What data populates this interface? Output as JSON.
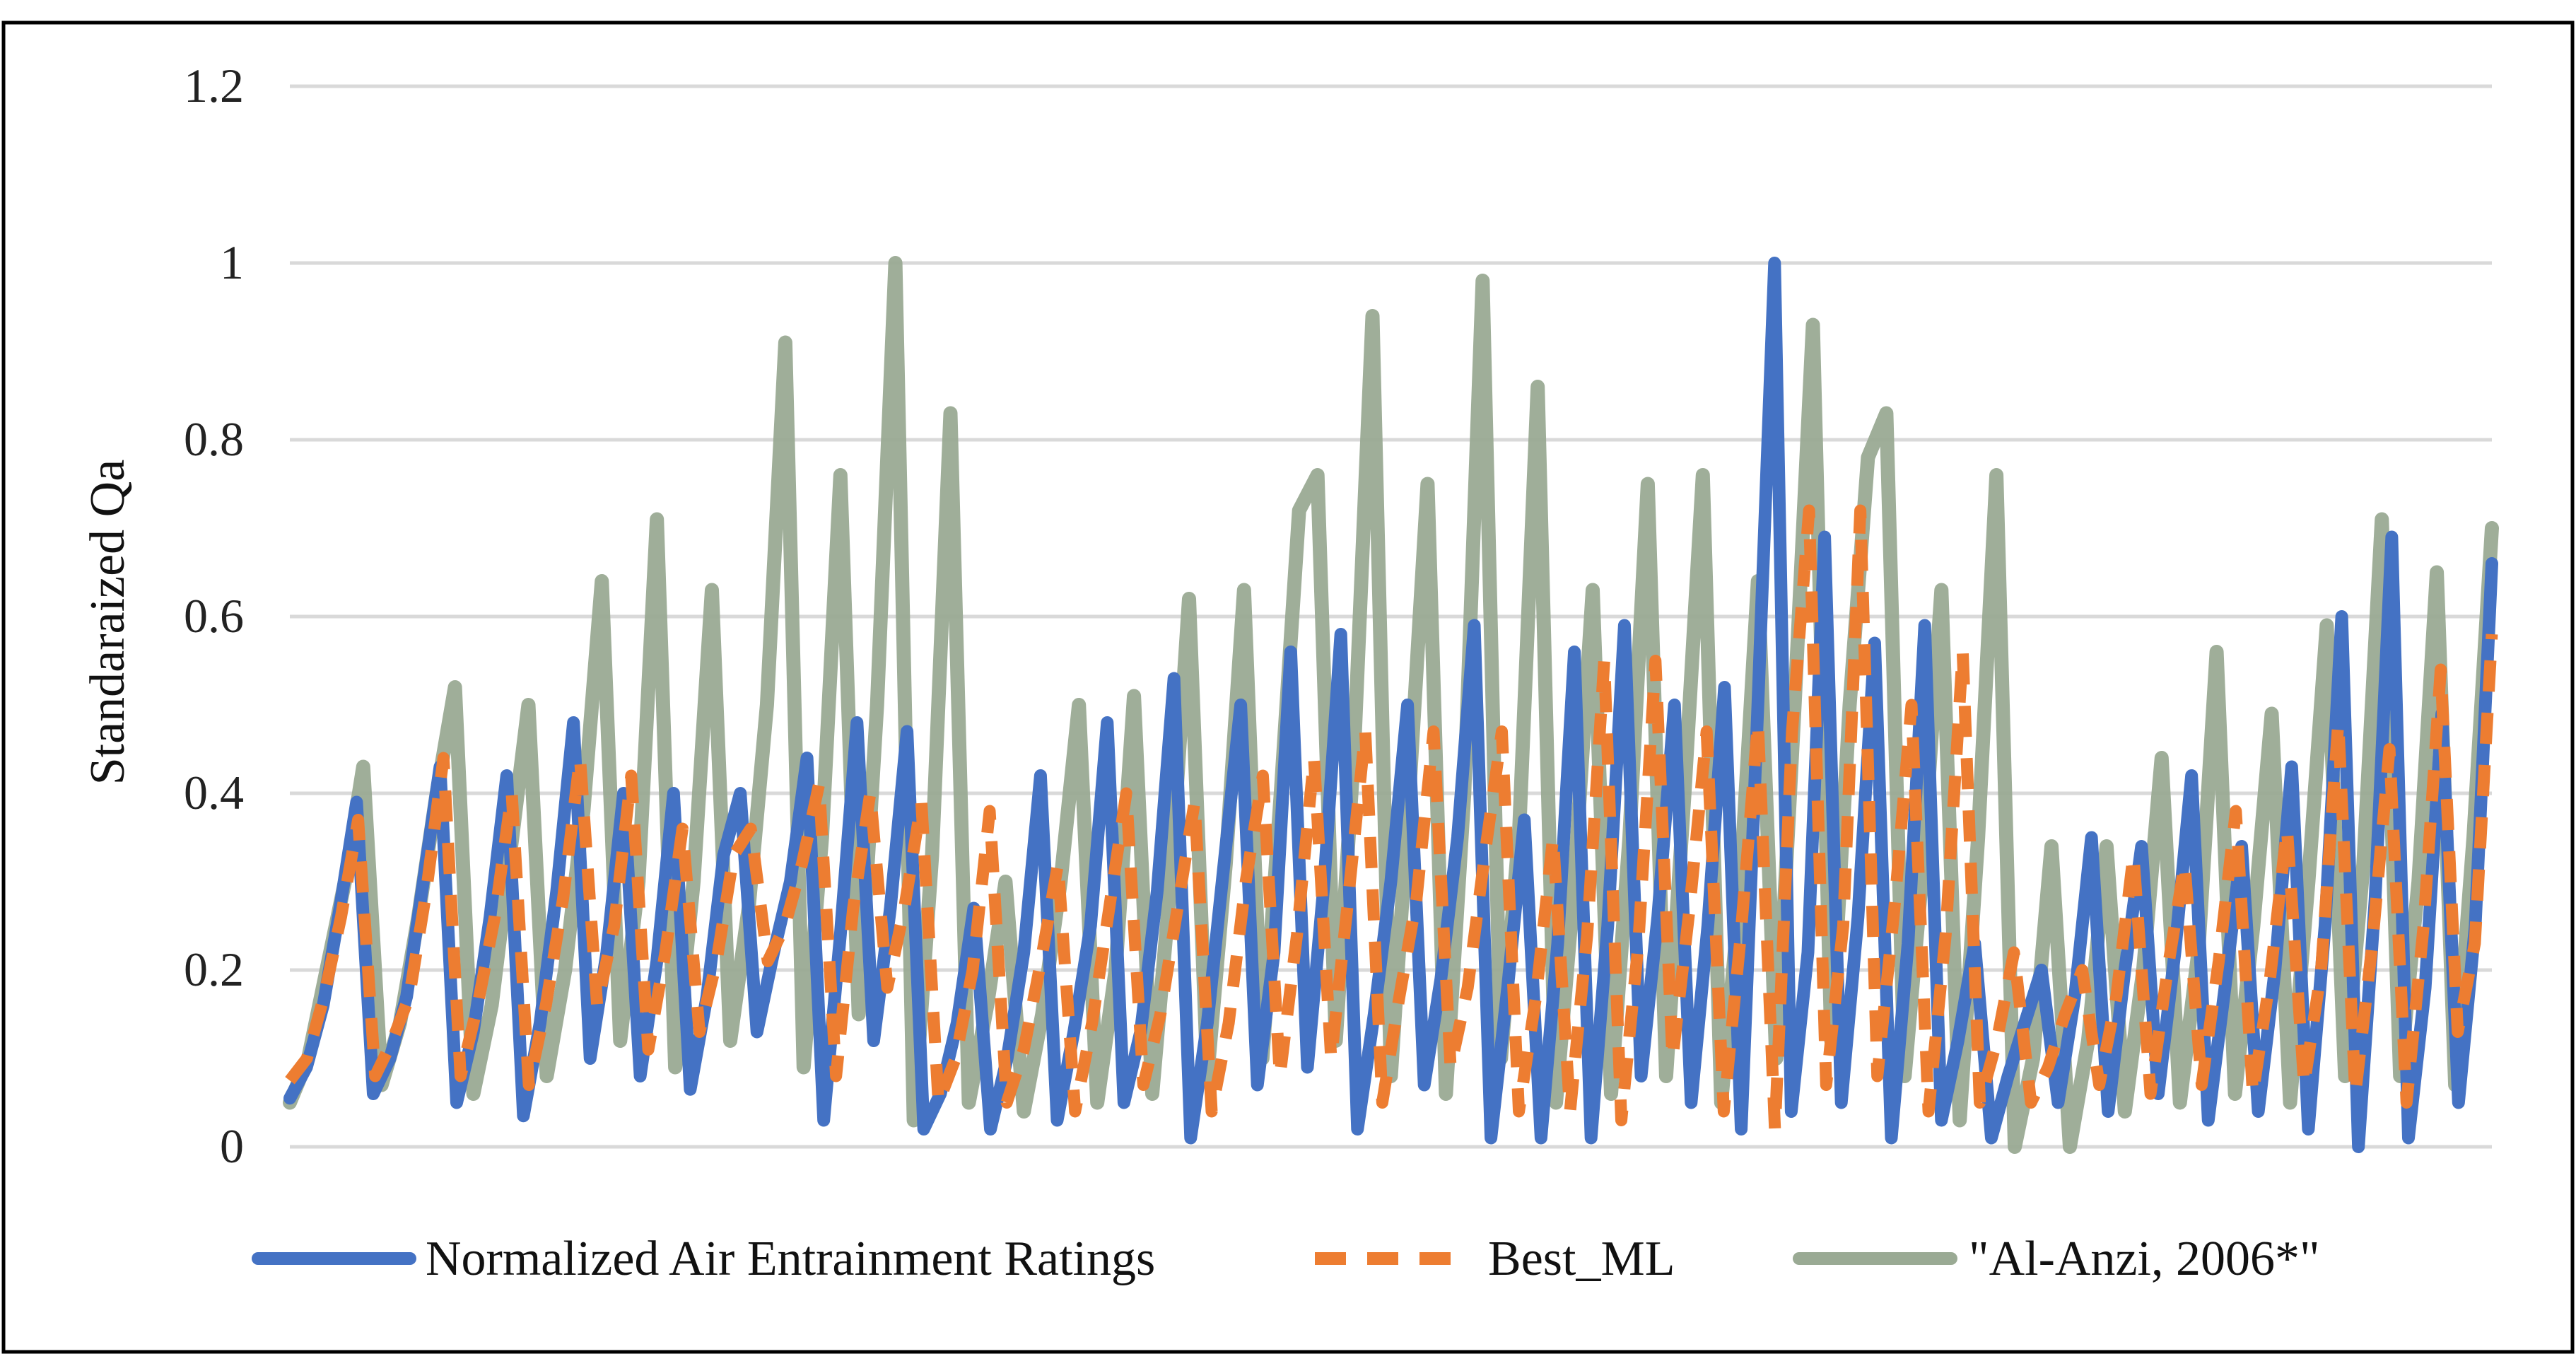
{
  "chart_data": {
    "type": "line",
    "title": "",
    "xlabel": "",
    "ylabel": "Standaraized Qa",
    "ylim": [
      0,
      1.2
    ],
    "y_ticks": [
      "0",
      "0.2",
      "0.4",
      "0.6",
      "0.8",
      "1",
      "1.2"
    ],
    "grid": true,
    "legend_position": "bottom",
    "series": [
      {
        "name": "Normalized Air Entrainment Ratings",
        "color": "#4472C4",
        "style": "solid",
        "values": [
          0.055,
          0.09,
          0.16,
          0.27,
          0.39,
          0.06,
          0.1,
          0.17,
          0.3,
          0.43,
          0.05,
          0.13,
          0.26,
          0.42,
          0.035,
          0.14,
          0.29,
          0.48,
          0.1,
          0.22,
          0.4,
          0.08,
          0.21,
          0.4,
          0.065,
          0.17,
          0.33,
          0.4,
          0.13,
          0.22,
          0.3,
          0.44,
          0.03,
          0.24,
          0.48,
          0.12,
          0.27,
          0.47,
          0.02,
          0.06,
          0.14,
          0.27,
          0.02,
          0.1,
          0.22,
          0.42,
          0.03,
          0.13,
          0.25,
          0.48,
          0.05,
          0.13,
          0.29,
          0.53,
          0.01,
          0.14,
          0.32,
          0.5,
          0.07,
          0.22,
          0.56,
          0.09,
          0.3,
          0.58,
          0.02,
          0.15,
          0.3,
          0.5,
          0.07,
          0.19,
          0.35,
          0.59,
          0.01,
          0.18,
          0.37,
          0.01,
          0.23,
          0.56,
          0.01,
          0.25,
          0.59,
          0.08,
          0.26,
          0.5,
          0.05,
          0.25,
          0.52,
          0.02,
          0.5,
          1.0,
          0.04,
          0.22,
          0.69,
          0.05,
          0.26,
          0.57,
          0.01,
          0.23,
          0.59,
          0.03,
          0.12,
          0.23,
          0.01,
          0.08,
          0.14,
          0.2,
          0.05,
          0.17,
          0.35,
          0.04,
          0.2,
          0.34,
          0.06,
          0.22,
          0.42,
          0.03,
          0.18,
          0.34,
          0.04,
          0.2,
          0.43,
          0.02,
          0.25,
          0.6,
          0.0,
          0.28,
          0.69,
          0.01,
          0.18,
          0.49,
          0.05,
          0.25,
          0.66
        ],
        "labels_note": "dense series"
      },
      {
        "name": "Best_ML",
        "color": "#ED7D31",
        "style": "dashed",
        "values": [
          0.075,
          0.1,
          0.17,
          0.26,
          0.37,
          0.08,
          0.12,
          0.17,
          0.29,
          0.44,
          0.08,
          0.16,
          0.26,
          0.4,
          0.07,
          0.16,
          0.28,
          0.44,
          0.16,
          0.25,
          0.42,
          0.11,
          0.22,
          0.36,
          0.13,
          0.21,
          0.33,
          0.36,
          0.21,
          0.25,
          0.32,
          0.41,
          0.08,
          0.27,
          0.4,
          0.18,
          0.27,
          0.39,
          0.05,
          0.1,
          0.2,
          0.38,
          0.05,
          0.11,
          0.21,
          0.32,
          0.04,
          0.14,
          0.27,
          0.4,
          0.07,
          0.15,
          0.27,
          0.39,
          0.04,
          0.14,
          0.3,
          0.42,
          0.08,
          0.24,
          0.44,
          0.1,
          0.28,
          0.47,
          0.05,
          0.17,
          0.28,
          0.47,
          0.09,
          0.18,
          0.33,
          0.47,
          0.04,
          0.17,
          0.35,
          0.04,
          0.24,
          0.55,
          0.03,
          0.23,
          0.55,
          0.1,
          0.27,
          0.47,
          0.04,
          0.24,
          0.48,
          0.02,
          0.47,
          0.72,
          0.07,
          0.25,
          0.72,
          0.08,
          0.27,
          0.5,
          0.04,
          0.24,
          0.56,
          0.05,
          0.12,
          0.22,
          0.05,
          0.09,
          0.15,
          0.2,
          0.07,
          0.17,
          0.33,
          0.06,
          0.2,
          0.32,
          0.07,
          0.21,
          0.38,
          0.06,
          0.19,
          0.36,
          0.07,
          0.2,
          0.48,
          0.06,
          0.23,
          0.45,
          0.05,
          0.25,
          0.54,
          0.13,
          0.23,
          0.58
        ],
        "labels_note": "dense series"
      },
      {
        "name": "\"Al-Anzi, 2006*\"",
        "color": "#9AAA94",
        "style": "solid",
        "values": [
          0.05,
          0.1,
          0.2,
          0.3,
          0.43,
          0.07,
          0.14,
          0.26,
          0.4,
          0.52,
          0.06,
          0.16,
          0.33,
          0.5,
          0.08,
          0.2,
          0.38,
          0.64,
          0.12,
          0.3,
          0.71,
          0.09,
          0.3,
          0.63,
          0.12,
          0.27,
          0.5,
          0.91,
          0.09,
          0.35,
          0.76,
          0.15,
          0.5,
          1.0,
          0.03,
          0.33,
          0.83,
          0.05,
          0.16,
          0.3,
          0.04,
          0.15,
          0.3,
          0.5,
          0.05,
          0.2,
          0.51,
          0.06,
          0.3,
          0.62,
          0.08,
          0.32,
          0.63,
          0.1,
          0.4,
          0.72,
          0.76,
          0.12,
          0.45,
          0.94,
          0.08,
          0.4,
          0.75,
          0.06,
          0.4,
          0.98,
          0.1,
          0.36,
          0.86,
          0.05,
          0.3,
          0.63,
          0.06,
          0.35,
          0.75,
          0.08,
          0.4,
          0.76,
          0.05,
          0.28,
          0.64,
          0.1,
          0.5,
          0.93,
          0.12,
          0.5,
          0.78,
          0.83,
          0.08,
          0.32,
          0.63,
          0.03,
          0.35,
          0.76,
          0.0,
          0.1,
          0.34,
          0.0,
          0.12,
          0.34,
          0.04,
          0.2,
          0.44,
          0.05,
          0.22,
          0.56,
          0.06,
          0.25,
          0.49,
          0.05,
          0.3,
          0.59,
          0.08,
          0.32,
          0.71,
          0.08,
          0.3,
          0.65,
          0.07,
          0.35,
          0.7
        ],
        "labels_note": "dense series"
      }
    ]
  }
}
